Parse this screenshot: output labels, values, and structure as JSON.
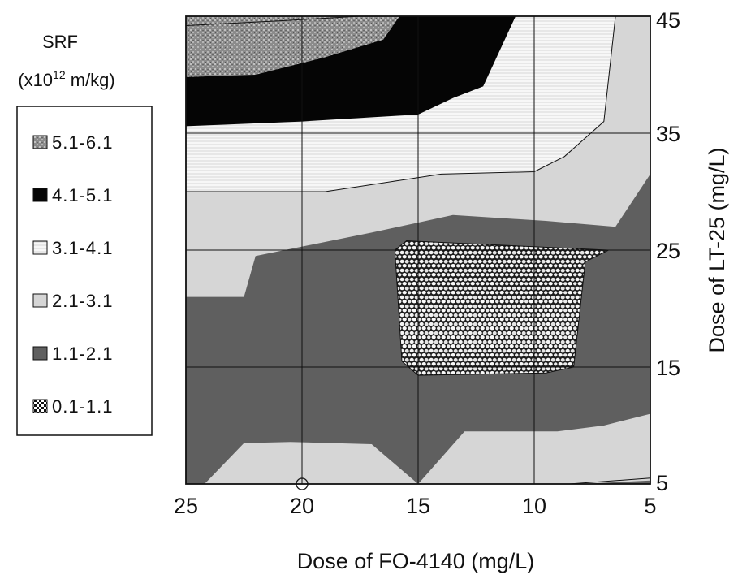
{
  "chart_data": {
    "type": "contour",
    "xlabel": "Dose of FO-4140 (mg/L)",
    "ylabel": "Dose of LT-25 (mg/L)",
    "x_ticks": [
      "25",
      "20",
      "15",
      "10",
      "5"
    ],
    "y_ticks": [
      "45",
      "35",
      "25",
      "15",
      "5"
    ],
    "xlim": [
      25,
      5
    ],
    "ylim": [
      5,
      45
    ],
    "x_axis_reversed": true,
    "y_axis_position": "right",
    "grid": true,
    "legend_position": "left",
    "legend": {
      "title_line1": "SRF",
      "title_line2_prefix": "(x10",
      "title_line2_exp": "12",
      "title_line2_suffix": " m/kg)",
      "entries": [
        {
          "label": "5.1-6.1",
          "pattern": "stipple-dark"
        },
        {
          "label": "4.1-5.1",
          "pattern": "solid-black"
        },
        {
          "label": "3.1-4.1",
          "pattern": "white-hatch"
        },
        {
          "label": "2.1-3.1",
          "pattern": "light-gray"
        },
        {
          "label": "1.1-2.1",
          "pattern": "dark-gray"
        },
        {
          "label": "0.1-1.1",
          "pattern": "cells"
        }
      ]
    },
    "regions": [
      {
        "range": "1.1-2.1",
        "fill": "dark-gray",
        "polygon": [
          [
            25,
            5
          ],
          [
            5,
            5
          ],
          [
            5,
            45
          ],
          [
            25,
            45
          ]
        ]
      },
      {
        "range": "2.1-3.1",
        "fill": "light-gray",
        "polygon": [
          [
            25,
            21
          ],
          [
            22.5,
            21
          ],
          [
            22,
            24.5
          ],
          [
            17,
            26.5
          ],
          [
            13.5,
            28
          ],
          [
            9.5,
            27.5
          ],
          [
            6.5,
            27
          ],
          [
            5,
            31.5
          ],
          [
            5,
            45
          ],
          [
            25,
            45
          ]
        ]
      },
      {
        "range": "2.1-3.1",
        "fill": "light-gray",
        "polygon": [
          [
            25,
            5
          ],
          [
            24.2,
            5
          ],
          [
            22.5,
            8.5
          ],
          [
            20.5,
            8.6
          ],
          [
            17,
            8.4
          ],
          [
            15,
            5
          ],
          [
            13,
            9.5
          ],
          [
            11,
            9.5
          ],
          [
            9,
            9.5
          ],
          [
            7,
            10
          ],
          [
            5,
            11
          ],
          [
            5,
            5.3
          ],
          [
            8,
            5
          ],
          [
            25,
            5
          ]
        ]
      },
      {
        "range": "3.1-4.1",
        "fill": "white-hatch",
        "polygon": [
          [
            25,
            30
          ],
          [
            19,
            30
          ],
          [
            14,
            31.5
          ],
          [
            10,
            31.7
          ],
          [
            8.7,
            33
          ],
          [
            7,
            36
          ],
          [
            6.5,
            45
          ],
          [
            25,
            45
          ]
        ]
      },
      {
        "range": "4.1-5.1",
        "fill": "solid-black",
        "polygon": [
          [
            25,
            35.6
          ],
          [
            20,
            36
          ],
          [
            15,
            36.6
          ],
          [
            13.5,
            38
          ],
          [
            12.2,
            39
          ],
          [
            10.8,
            45
          ],
          [
            25,
            45
          ]
        ]
      },
      {
        "range": "5.1-6.1",
        "fill": "stipple-dark",
        "polygon": [
          [
            25,
            39.8
          ],
          [
            22,
            40
          ],
          [
            19,
            41.5
          ],
          [
            16.5,
            43
          ],
          [
            15.8,
            45
          ],
          [
            25,
            45
          ]
        ]
      },
      {
        "range": "0.1-1.1",
        "fill": "cells",
        "polygon": [
          [
            16,
            25
          ],
          [
            15.5,
            25.8
          ],
          [
            6.8,
            25
          ],
          [
            7.8,
            24
          ],
          [
            8.3,
            15
          ],
          [
            9.5,
            14.5
          ],
          [
            15,
            14.3
          ],
          [
            15.7,
            15.5
          ]
        ]
      }
    ],
    "contour_lines": [
      {
        "points": [
          [
            25,
            30
          ],
          [
            19,
            30
          ],
          [
            14,
            31.5
          ],
          [
            10,
            31.7
          ],
          [
            8.7,
            33
          ],
          [
            7,
            36
          ],
          [
            6.5,
            45
          ]
        ]
      },
      {
        "points": [
          [
            25,
            44.2
          ],
          [
            21,
            44.6
          ],
          [
            17.5,
            45
          ]
        ]
      },
      {
        "points": [
          [
            8.5,
            5
          ],
          [
            5,
            5.5
          ]
        ]
      }
    ],
    "markers": [
      {
        "x": 20,
        "y": 5,
        "shape": "circle"
      }
    ]
  }
}
